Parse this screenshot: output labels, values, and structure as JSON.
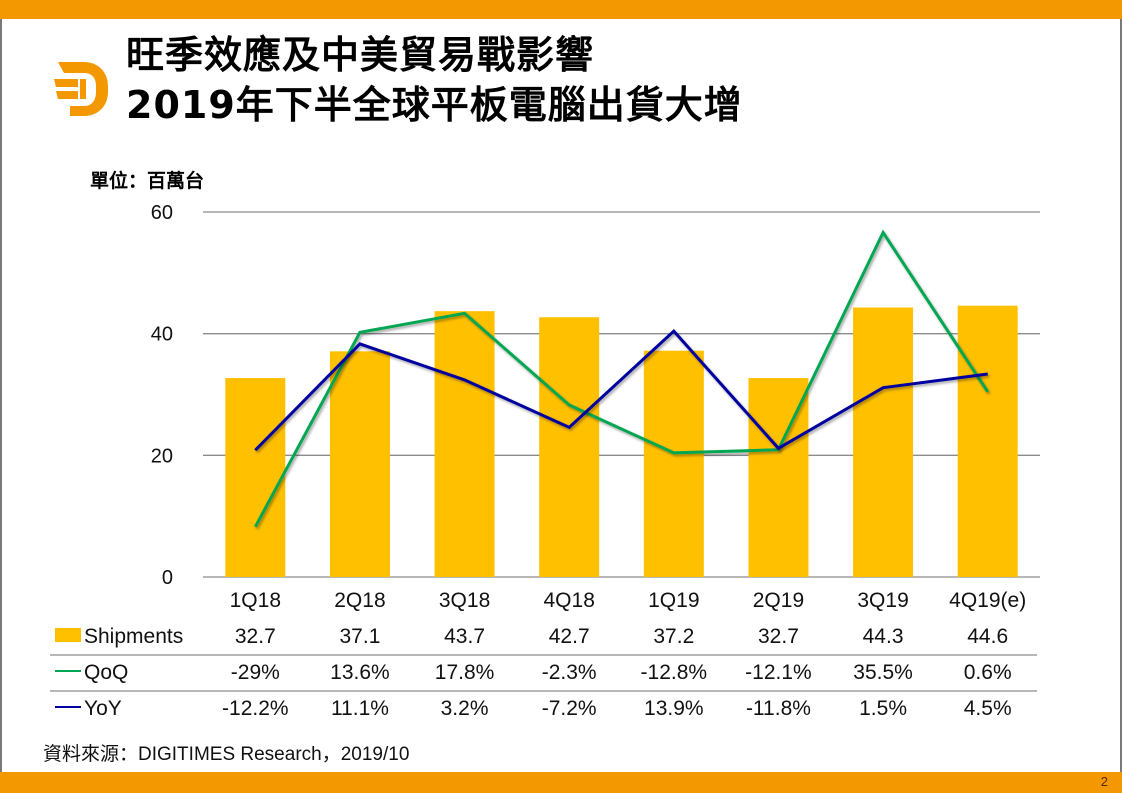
{
  "slide": {
    "title_line1": "旺季效應及中美貿易戰影響",
    "title_line2": "2019年下半全球平板電腦出貨大增",
    "unit_label": "單位：百萬台",
    "source": "資料來源：DIGITIMES Research，2019/10",
    "page_number": "2",
    "logo_icon": "digitimes-d-logo-icon",
    "colors": {
      "brand_orange": "#F39800",
      "bar": "#FFC000",
      "qoq_line": "#00A651",
      "yoy_line": "#0000A0",
      "grid": "#8c8c8c"
    }
  },
  "chart_data": {
    "type": "bar",
    "title": "2019年下半全球平板電腦出貨大增",
    "ylabel": "單位：百萬台",
    "xlabel": "",
    "categories": [
      "1Q18",
      "2Q18",
      "3Q18",
      "4Q18",
      "1Q19",
      "2Q19",
      "3Q19",
      "4Q19(e)"
    ],
    "ylim": [
      0,
      60
    ],
    "yticks": [
      0,
      20,
      40,
      60
    ],
    "y2lim": [
      -40,
      40
    ],
    "y2_visible": false,
    "grid": true,
    "legend": "data-table-below",
    "series": [
      {
        "name": "Shipments",
        "type": "bar",
        "axis": "primary",
        "values": [
          32.7,
          37.1,
          43.7,
          42.7,
          37.2,
          32.7,
          44.3,
          44.6
        ],
        "labels": [
          "32.7",
          "37.1",
          "43.7",
          "42.7",
          "37.2",
          "32.7",
          "44.3",
          "44.6"
        ]
      },
      {
        "name": "QoQ",
        "type": "line",
        "axis": "secondary",
        "unit": "%",
        "values": [
          -29,
          13.6,
          17.8,
          -2.3,
          -12.8,
          -12.1,
          35.5,
          0.6
        ],
        "labels": [
          "-29%",
          "13.6%",
          "17.8%",
          "-2.3%",
          "-12.8%",
          "-12.1%",
          "35.5%",
          "0.6%"
        ]
      },
      {
        "name": "YoY",
        "type": "line",
        "axis": "secondary",
        "unit": "%",
        "values": [
          -12.2,
          11.1,
          3.2,
          -7.2,
          13.9,
          -11.8,
          1.5,
          4.5
        ],
        "labels": [
          "-12.2%",
          "11.1%",
          "3.2%",
          "-7.2%",
          "13.9%",
          "-11.8%",
          "1.5%",
          "4.5%"
        ]
      }
    ]
  }
}
